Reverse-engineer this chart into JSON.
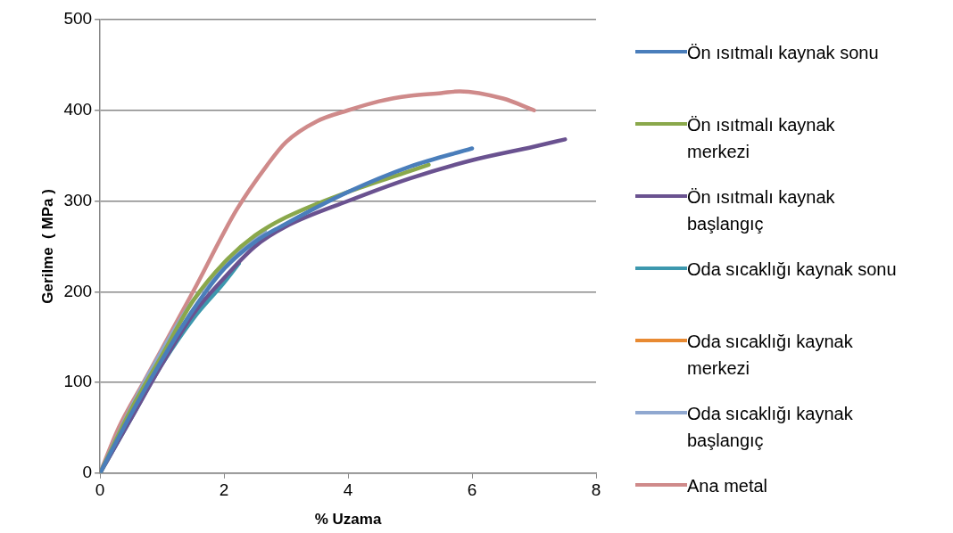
{
  "chart_data": {
    "type": "line",
    "xlabel": "% Uzama",
    "ylabel": "Gerilme  ( MPa )",
    "xlim": [
      0,
      8
    ],
    "xticks": [
      0,
      2,
      4,
      6,
      8
    ],
    "ylim": [
      0,
      500
    ],
    "yticks": [
      0,
      100,
      200,
      300,
      400,
      500
    ],
    "grid": "y",
    "legend": "right",
    "marker": "none",
    "line_style": "solid",
    "series": [
      {
        "name": "Ön ısıtmalı kaynak sonu",
        "color": "#4a7ebb",
        "x": [
          0,
          0.5,
          1,
          1.5,
          2,
          2.5,
          3,
          4,
          5,
          6
        ],
        "values": [
          0,
          65,
          125,
          180,
          225,
          255,
          275,
          310,
          338,
          358
        ]
      },
      {
        "name": "Ön ısıtmalı kaynak merkezi",
        "color": "#8aa84b",
        "x": [
          0,
          0.5,
          1,
          1.5,
          2,
          2.5,
          3,
          4,
          5,
          5.3
        ],
        "values": [
          0,
          70,
          130,
          190,
          232,
          262,
          282,
          310,
          333,
          340
        ]
      },
      {
        "name": "Ön ısıtmalı kaynak başlangıç",
        "color": "#6a5290",
        "x": [
          0,
          0.5,
          1,
          1.5,
          2,
          2.5,
          3,
          4,
          5,
          6,
          7,
          7.5
        ],
        "values": [
          0,
          60,
          120,
          175,
          215,
          250,
          272,
          300,
          325,
          345,
          360,
          368
        ]
      },
      {
        "name": "Oda sıcaklığı kaynak sonu",
        "color": "#3d98ae",
        "x": [
          0,
          0.5,
          1,
          1.5,
          2,
          2.24
        ],
        "values": [
          0,
          60,
          120,
          170,
          210,
          231
        ]
      },
      {
        "name": "Oda sıcaklığı kaynak merkezi",
        "color": "#e88a32"
      },
      {
        "name": "Oda sıcaklığı kaynak başlangıç",
        "color": "#90a8d0",
        "x": [
          0,
          0.5,
          1,
          1.5,
          2,
          2.66
        ],
        "values": [
          0,
          72,
          135,
          190,
          228,
          267
        ]
      },
      {
        "name": "Ana metal",
        "color": "#cf8a8a",
        "x": [
          0,
          0.3,
          0.7,
          1.5,
          2.2,
          2.7,
          3,
          3.5,
          4,
          4.5,
          5,
          5.5,
          5.8,
          6.5,
          7
        ],
        "values": [
          0,
          50,
          100,
          200,
          290,
          340,
          365,
          388,
          400,
          410,
          416,
          419,
          421,
          413,
          400
        ]
      }
    ]
  }
}
